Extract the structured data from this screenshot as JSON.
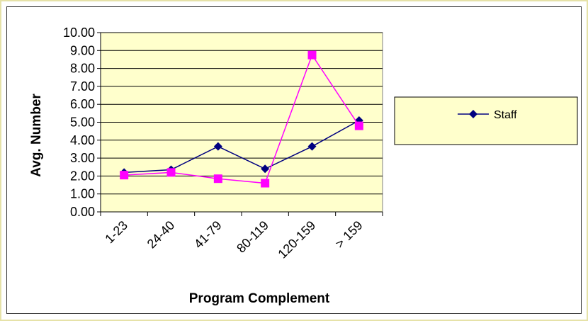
{
  "chart_data": {
    "type": "line",
    "categories": [
      "1-23",
      "24-40",
      "41-79",
      "80-119",
      "120-159",
      "> 159"
    ],
    "series": [
      {
        "name": "Staff",
        "values": [
          2.2,
          2.35,
          3.65,
          2.4,
          3.65,
          5.1
        ],
        "color": "#000080",
        "marker": "diamond"
      },
      {
        "values": [
          2.05,
          2.2,
          1.85,
          1.6,
          8.75,
          4.8
        ],
        "color": "#ff00ff",
        "marker": "square"
      }
    ],
    "title": "",
    "xlabel": "Program Complement",
    "ylabel": "Avg. Number",
    "ylim": [
      0,
      10
    ],
    "ytick_step": 1,
    "ytick_format": "0.00",
    "grid": true,
    "plot_background": "#ffffcc",
    "legend_background": "#ffffcc",
    "legend_position": "right",
    "frame_color": "#e6e2a8"
  }
}
